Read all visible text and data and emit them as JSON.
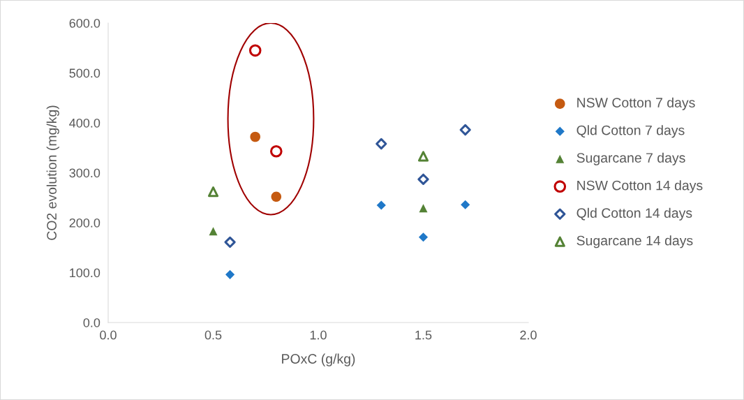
{
  "chart_data": {
    "type": "scatter",
    "xlabel": "POxC (g/kg)",
    "ylabel": "CO2 evolution (mg/kg)",
    "xlim": [
      0,
      2
    ],
    "xticks": [
      {
        "value": 0,
        "label": "0.0"
      },
      {
        "value": 0.5,
        "label": "0.5"
      },
      {
        "value": 1,
        "label": "1.0"
      },
      {
        "value": 1.5,
        "label": "1.5"
      },
      {
        "value": 2,
        "label": "2.0"
      }
    ],
    "ylim": [
      0,
      600
    ],
    "yticks": [
      {
        "value": 0,
        "label": "0.0"
      },
      {
        "value": 100,
        "label": "100.0"
      },
      {
        "value": 200,
        "label": "200.0"
      },
      {
        "value": 300,
        "label": "300.0"
      },
      {
        "value": 400,
        "label": "400.0"
      },
      {
        "value": 500,
        "label": "500.0"
      },
      {
        "value": 600,
        "label": "600.0"
      }
    ],
    "grid": false,
    "legend": "right",
    "series": [
      {
        "name": "NSW Cotton 7 days",
        "color": "#c55a11",
        "marker": "circle",
        "x": [
          0.7,
          0.8
        ],
        "values": [
          372,
          252
        ]
      },
      {
        "name": "Qld Cotton 7 days",
        "color": "#1f78c8",
        "marker": "diamond",
        "x": [
          0.58,
          1.3,
          1.5,
          1.7
        ],
        "values": [
          96,
          235,
          171,
          236
        ]
      },
      {
        "name": "Sugarcane 7 days",
        "color": "#548235",
        "marker": "triangle",
        "x": [
          0.5,
          1.5
        ],
        "values": [
          183,
          229
        ]
      },
      {
        "name": "NSW Cotton 14 days",
        "color": "#c00000",
        "marker": "circle",
        "x": [
          0.7,
          0.8
        ],
        "values": [
          545,
          343
        ]
      },
      {
        "name": "Qld Cotton 14 days",
        "color": "#2f5597",
        "marker": "diamond",
        "x": [
          0.58,
          1.3,
          1.5,
          1.7
        ],
        "values": [
          161,
          358,
          287,
          386
        ]
      },
      {
        "name": "Sugarcane 14 days",
        "color": "#548235",
        "marker": "triangle",
        "x": [
          0.5,
          1.5
        ],
        "values": [
          262,
          333
        ]
      }
    ]
  }
}
